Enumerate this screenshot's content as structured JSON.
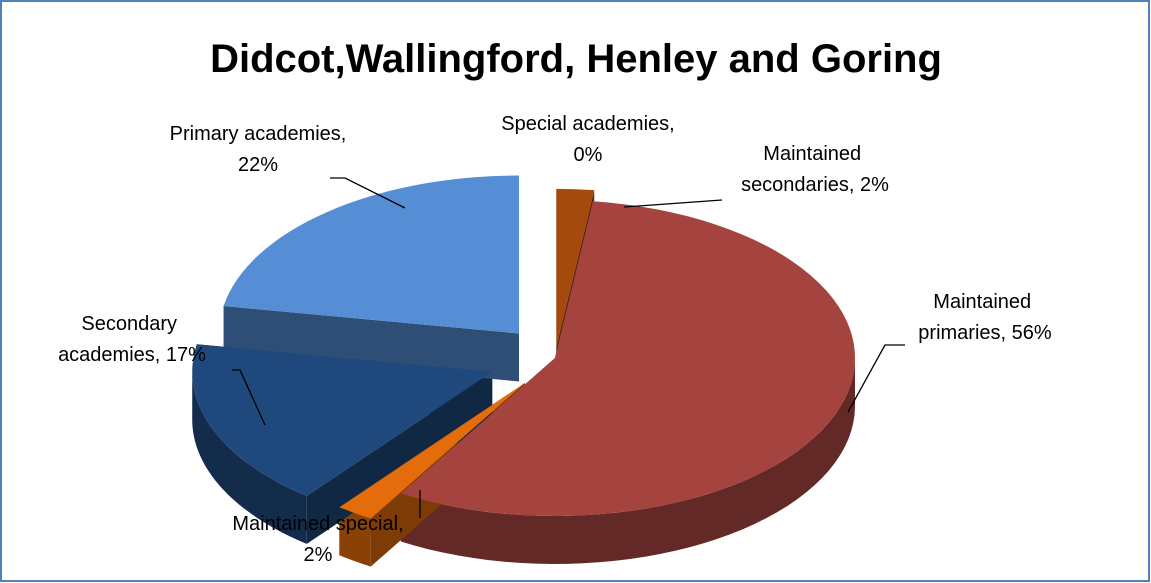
{
  "chart_data": {
    "type": "pie",
    "title": "Didcot,Wallingford, Henley and Goring",
    "categories": [
      "Maintained secondaries",
      "Maintained primaries",
      "Maintained special",
      "Secondary academies",
      "Primary academies",
      "Special academies"
    ],
    "values": [
      2,
      56,
      2,
      17,
      22,
      0
    ],
    "value_labels": [
      "2%",
      "56%",
      "2%",
      "17%",
      "22%",
      "0%"
    ],
    "colors": [
      "#a34a0c",
      "#a5443f",
      "#e46c0a",
      "#1f497d",
      "#558ed5",
      "#7f7f7f"
    ]
  }
}
